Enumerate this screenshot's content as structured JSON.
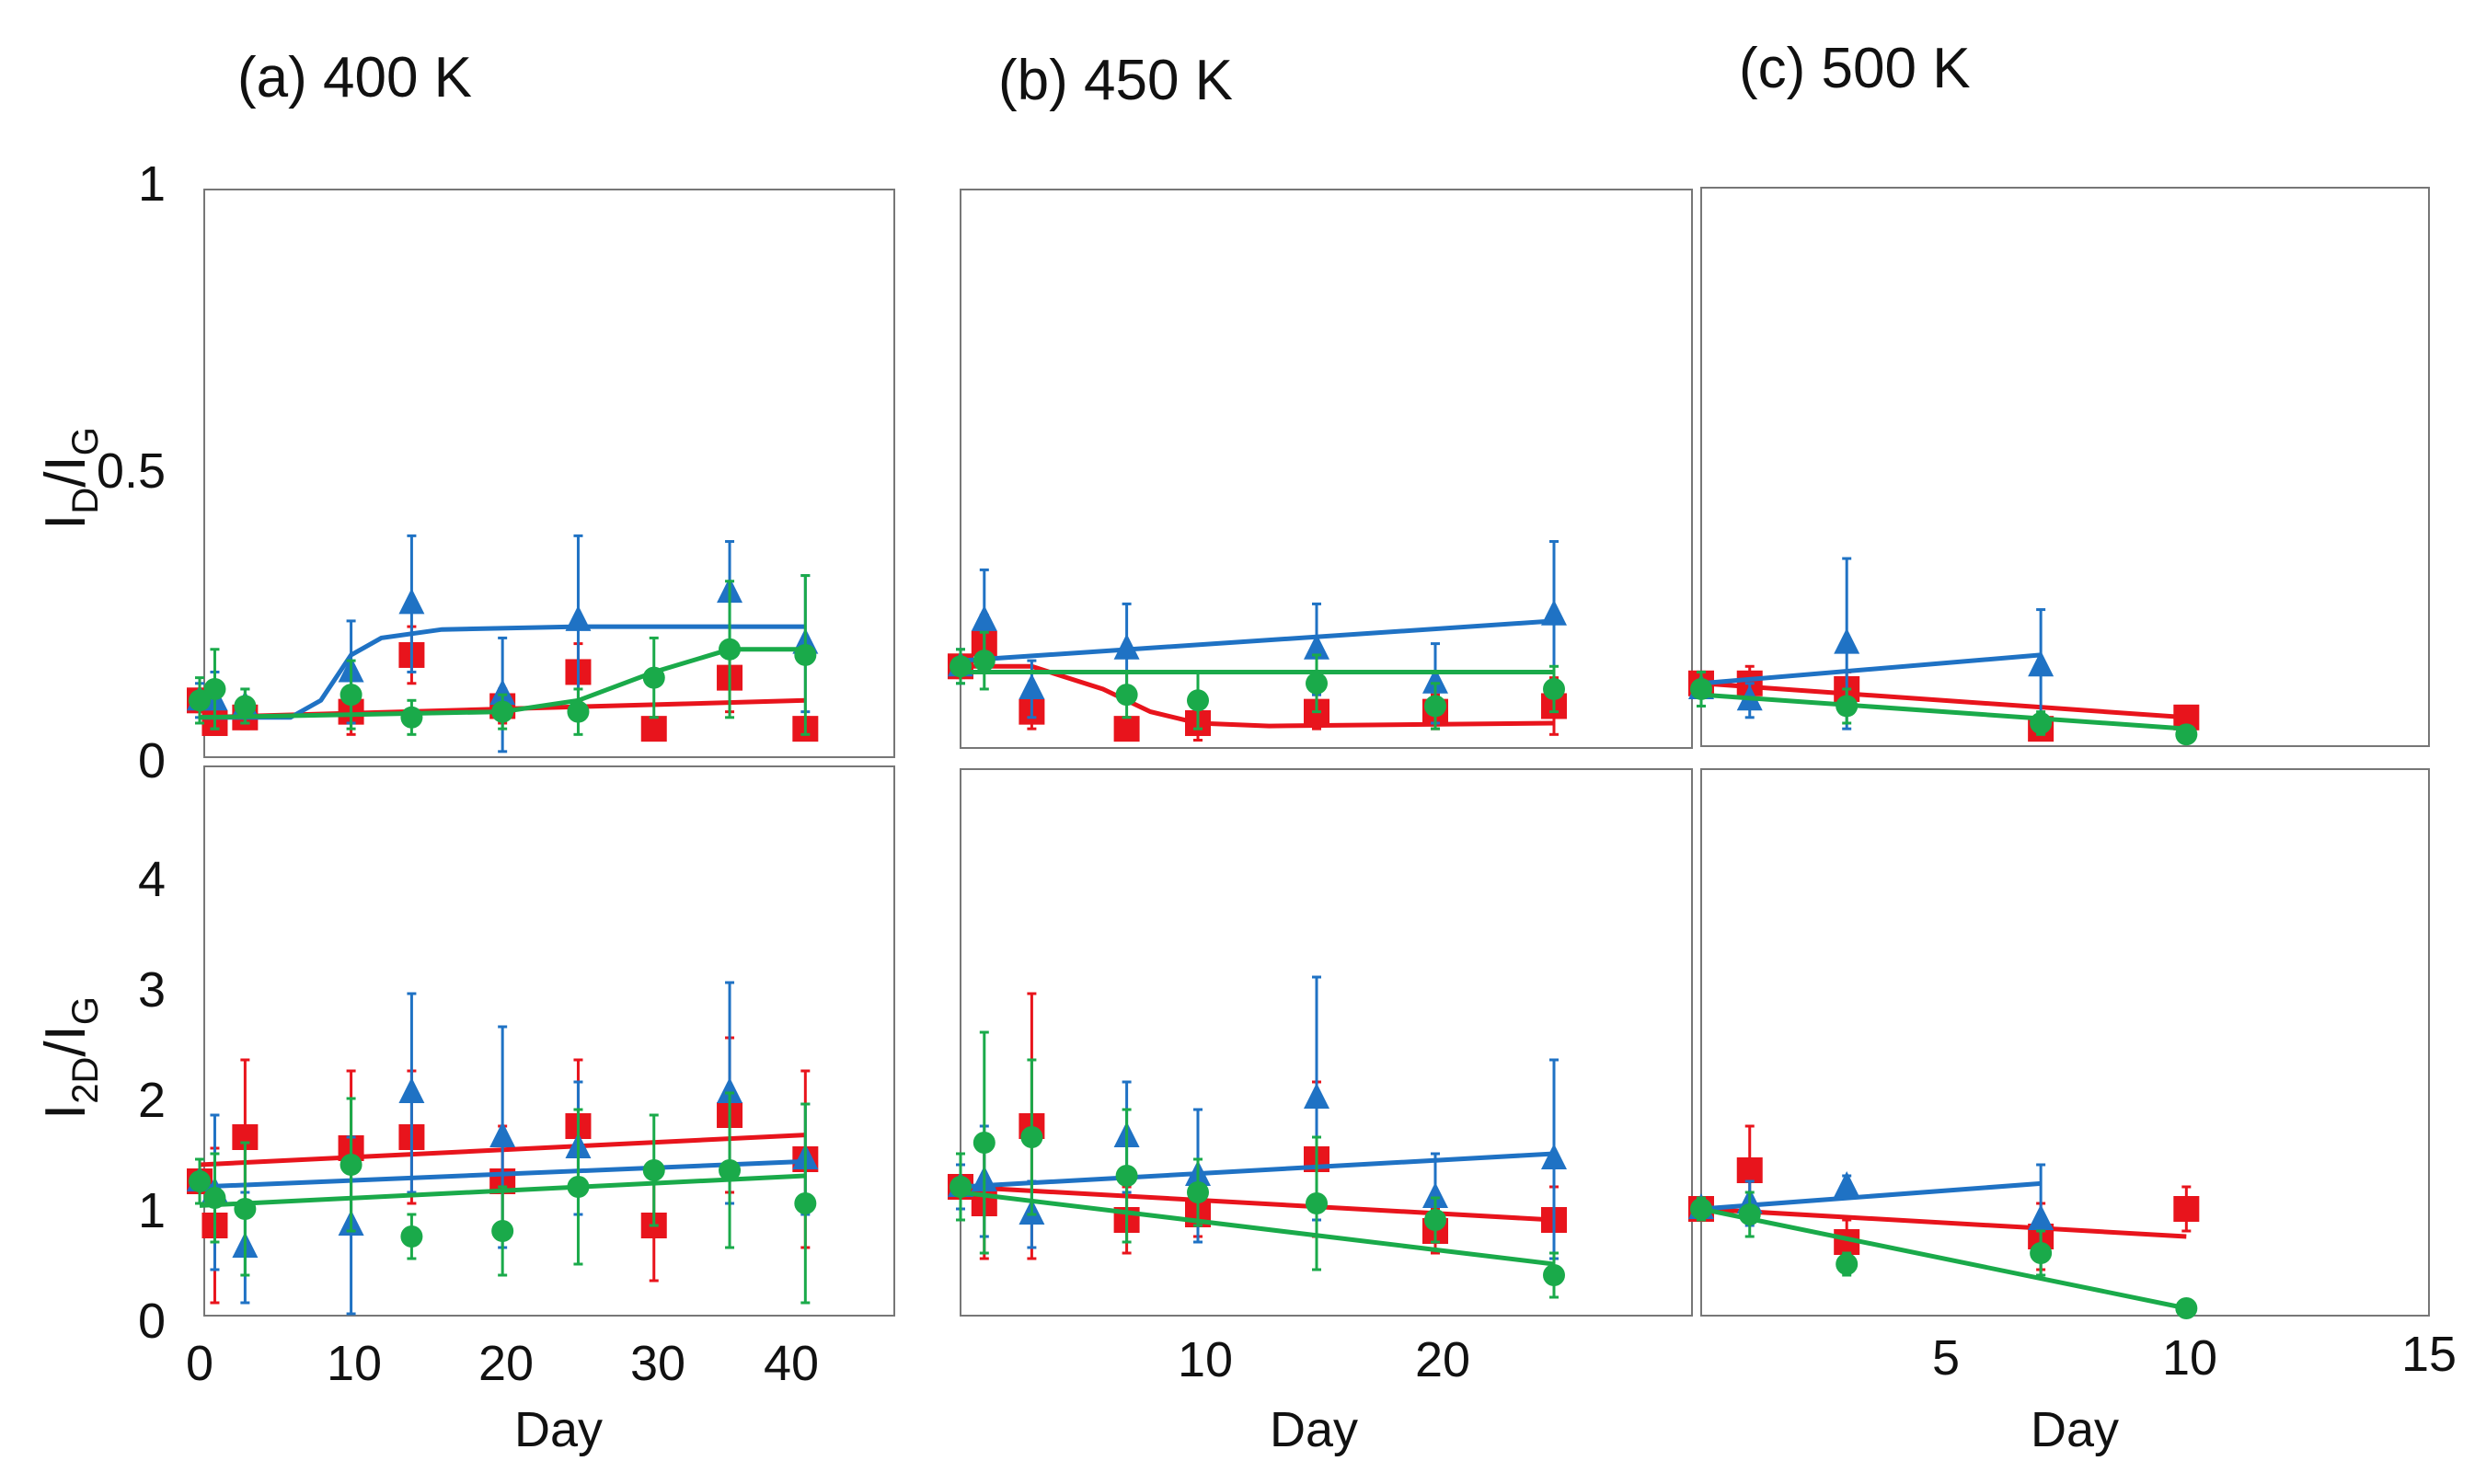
{
  "panel_titles": [
    "(a) 400 K",
    "(b) 450 K",
    "(c) 500 K"
  ],
  "y_labels": {
    "top": {
      "main": "I",
      "sub1": "D",
      "mid": "/I",
      "sub2": "G"
    },
    "bottom": {
      "main": "I",
      "sub1": "2D",
      "mid": "/I",
      "sub2": "G"
    }
  },
  "x_label": "Day",
  "top_y_ticks": [
    "1",
    "0.5",
    "0"
  ],
  "bottom_y_ticks": [
    "4",
    "3",
    "2",
    "1",
    "0"
  ],
  "x_ticks": {
    "a": [
      "0",
      "10",
      "20",
      "30",
      "40"
    ],
    "b": [
      "10",
      "20"
    ],
    "c": [
      "5",
      "10",
      "15"
    ]
  },
  "colors": {
    "red": "#e8141c",
    "blue": "#1f72c4",
    "green": "#1aaa4a",
    "frame": "#777777"
  },
  "chart_data": [
    {
      "type": "scatter",
      "panel": "a-top",
      "ylim": [
        0,
        1
      ],
      "xlim": [
        0,
        48
      ],
      "series": [
        {
          "color": "red",
          "marker": "square",
          "points": [
            [
              0,
              0.1,
              0.02
            ],
            [
              1,
              0.06,
              0.02
            ],
            [
              3,
              0.07,
              0.02
            ],
            [
              10,
              0.08,
              0.04
            ],
            [
              14,
              0.18,
              0.05
            ],
            [
              20,
              0.09,
              0.03
            ],
            [
              25,
              0.15,
              0.05
            ],
            [
              30,
              0.05,
              0.02
            ],
            [
              35,
              0.14,
              0.06
            ],
            [
              40,
              0.05,
              0.02
            ]
          ],
          "fit": [
            [
              0,
              0.07
            ],
            [
              40,
              0.1
            ]
          ]
        },
        {
          "color": "blue",
          "marker": "triangle",
          "points": [
            [
              0,
              0.1,
              0.03
            ],
            [
              1,
              0.1,
              0.05
            ],
            [
              3,
              0.09,
              0.03
            ],
            [
              10,
              0.15,
              0.09
            ],
            [
              14,
              0.27,
              0.12
            ],
            [
              20,
              0.11,
              0.1
            ],
            [
              25,
              0.24,
              0.15
            ],
            [
              35,
              0.29,
              0.09
            ],
            [
              40,
              0.2,
              0.12
            ]
          ],
          "fit": [
            [
              0,
              0.07
            ],
            [
              6,
              0.07
            ],
            [
              8,
              0.1
            ],
            [
              10,
              0.18
            ],
            [
              12,
              0.21
            ],
            [
              16,
              0.225
            ],
            [
              25,
              0.23
            ],
            [
              40,
              0.23
            ]
          ]
        },
        {
          "color": "green",
          "marker": "circle",
          "points": [
            [
              0,
              0.1,
              0.04
            ],
            [
              1,
              0.12,
              0.07
            ],
            [
              3,
              0.09,
              0.03
            ],
            [
              10,
              0.11,
              0.06
            ],
            [
              14,
              0.07,
              0.03
            ],
            [
              20,
              0.08,
              0.03
            ],
            [
              25,
              0.08,
              0.04
            ],
            [
              30,
              0.14,
              0.07
            ],
            [
              35,
              0.19,
              0.12
            ],
            [
              40,
              0.18,
              0.14
            ]
          ],
          "fit": [
            [
              0,
              0.07
            ],
            [
              20,
              0.08
            ],
            [
              25,
              0.1
            ],
            [
              30,
              0.15
            ],
            [
              35,
              0.19
            ],
            [
              40,
              0.19
            ]
          ]
        }
      ]
    },
    {
      "type": "scatter",
      "panel": "b-top",
      "ylim": [
        0,
        1
      ],
      "xlim": [
        0,
        30
      ],
      "series": [
        {
          "color": "red",
          "marker": "square",
          "points": [
            [
              0,
              0.16,
              0.02
            ],
            [
              1,
              0.2,
              0.05
            ],
            [
              3,
              0.08,
              0.03
            ],
            [
              7,
              0.05,
              0.02
            ],
            [
              10,
              0.06,
              0.03
            ],
            [
              15,
              0.08,
              0.03
            ],
            [
              20,
              0.08,
              0.03
            ],
            [
              25,
              0.09,
              0.05
            ]
          ],
          "fit": [
            [
              0,
              0.16
            ],
            [
              3,
              0.16
            ],
            [
              6,
              0.12
            ],
            [
              8,
              0.08
            ],
            [
              10,
              0.06
            ],
            [
              13,
              0.055
            ],
            [
              25,
              0.06
            ]
          ]
        },
        {
          "color": "blue",
          "marker": "triangle",
          "points": [
            [
              0,
              0.16,
              0.03
            ],
            [
              1,
              0.24,
              0.09
            ],
            [
              3,
              0.12,
              0.05
            ],
            [
              7,
              0.19,
              0.08
            ],
            [
              15,
              0.19,
              0.08
            ],
            [
              20,
              0.13,
              0.07
            ],
            [
              25,
              0.25,
              0.13
            ]
          ],
          "fit": [
            [
              0,
              0.17
            ],
            [
              25,
              0.24
            ]
          ]
        },
        {
          "color": "green",
          "marker": "circle",
          "points": [
            [
              0,
              0.16,
              0.03
            ],
            [
              1,
              0.17,
              0.05
            ],
            [
              7,
              0.11,
              0.04
            ],
            [
              10,
              0.1,
              0.05
            ],
            [
              15,
              0.13,
              0.05
            ],
            [
              20,
              0.09,
              0.04
            ],
            [
              25,
              0.12,
              0.04
            ]
          ],
          "fit": [
            [
              0,
              0.15
            ],
            [
              25,
              0.15
            ]
          ]
        }
      ]
    },
    {
      "type": "scatter",
      "panel": "c-top",
      "ylim": [
        0,
        1
      ],
      "xlim": [
        0,
        15
      ],
      "series": [
        {
          "color": "red",
          "marker": "square",
          "points": [
            [
              0,
              0.13,
              0.02
            ],
            [
              1,
              0.13,
              0.03
            ],
            [
              3,
              0.12,
              0.03
            ],
            [
              7,
              0.05,
              0.02
            ],
            [
              10,
              0.07,
              0.02
            ]
          ],
          "fit": [
            [
              0,
              0.13
            ],
            [
              10,
              0.07
            ]
          ]
        },
        {
          "color": "blue",
          "marker": "triangle",
          "points": [
            [
              0,
              0.12,
              0.03
            ],
            [
              1,
              0.1,
              0.03
            ],
            [
              3,
              0.2,
              0.15
            ],
            [
              7,
              0.16,
              0.1
            ]
          ],
          "fit": [
            [
              0,
              0.13
            ],
            [
              7,
              0.18
            ]
          ]
        },
        {
          "color": "green",
          "marker": "circle",
          "points": [
            [
              0,
              0.12,
              0.03
            ],
            [
              3,
              0.09,
              0.03
            ],
            [
              7,
              0.06,
              0.02
            ],
            [
              10,
              0.04,
              0.01
            ]
          ],
          "fit": [
            [
              0,
              0.11
            ],
            [
              10,
              0.05
            ]
          ]
        }
      ]
    },
    {
      "type": "scatter",
      "panel": "a-bottom",
      "ylim": [
        0,
        5
      ],
      "xlim": [
        0,
        48
      ],
      "series": [
        {
          "color": "red",
          "marker": "square",
          "points": [
            [
              0,
              1.3,
              0.2
            ],
            [
              1,
              0.9,
              0.7
            ],
            [
              3,
              1.7,
              0.7
            ],
            [
              10,
              1.6,
              0.7
            ],
            [
              14,
              1.7,
              0.6
            ],
            [
              20,
              1.3,
              0.5
            ],
            [
              25,
              1.8,
              0.6
            ],
            [
              30,
              0.9,
              0.5
            ],
            [
              35,
              1.9,
              0.7
            ],
            [
              40,
              1.5,
              0.8
            ]
          ],
          "fit": [
            [
              0,
              1.45
            ],
            [
              40,
              1.72
            ]
          ]
        },
        {
          "color": "blue",
          "marker": "triangle",
          "points": [
            [
              0,
              1.3,
              0.2
            ],
            [
              1,
              1.2,
              0.7
            ],
            [
              3,
              0.7,
              0.5
            ],
            [
              10,
              0.9,
              0.8
            ],
            [
              14,
              2.1,
              0.9
            ],
            [
              20,
              1.7,
              1.0
            ],
            [
              25,
              1.6,
              0.6
            ],
            [
              35,
              2.1,
              1.0
            ],
            [
              40,
              1.5,
              0.5
            ]
          ],
          "fit": [
            [
              0,
              1.25
            ],
            [
              40,
              1.48
            ]
          ]
        },
        {
          "color": "green",
          "marker": "circle",
          "points": [
            [
              0,
              1.3,
              0.2
            ],
            [
              1,
              1.15,
              0.4
            ],
            [
              3,
              1.05,
              0.6
            ],
            [
              10,
              1.45,
              0.6
            ],
            [
              14,
              0.8,
              0.2
            ],
            [
              20,
              0.85,
              0.4
            ],
            [
              25,
              1.25,
              0.7
            ],
            [
              30,
              1.4,
              0.5
            ],
            [
              35,
              1.4,
              0.7
            ],
            [
              40,
              1.1,
              0.9
            ]
          ],
          "fit": [
            [
              0,
              1.08
            ],
            [
              40,
              1.35
            ]
          ]
        }
      ]
    },
    {
      "type": "scatter",
      "panel": "b-bottom",
      "ylim": [
        0,
        5
      ],
      "xlim": [
        0,
        30
      ],
      "series": [
        {
          "color": "red",
          "marker": "square",
          "points": [
            [
              0,
              1.25,
              0.2
            ],
            [
              1,
              1.1,
              0.5
            ],
            [
              3,
              1.8,
              1.2
            ],
            [
              7,
              0.95,
              0.3
            ],
            [
              10,
              1.0,
              0.2
            ],
            [
              15,
              1.5,
              0.7
            ],
            [
              20,
              0.85,
              0.2
            ],
            [
              25,
              0.95,
              0.3
            ]
          ],
          "fit": [
            [
              0,
              1.25
            ],
            [
              25,
              0.95
            ]
          ]
        },
        {
          "color": "blue",
          "marker": "triangle",
          "points": [
            [
              0,
              1.25,
              0.2
            ],
            [
              1,
              1.3,
              0.5
            ],
            [
              3,
              1.0,
              0.3
            ],
            [
              7,
              1.7,
              0.5
            ],
            [
              10,
              1.35,
              0.6
            ],
            [
              15,
              2.05,
              1.1
            ],
            [
              20,
              1.15,
              0.4
            ],
            [
              25,
              1.5,
              0.9
            ]
          ],
          "fit": [
            [
              0,
              1.25
            ],
            [
              25,
              1.55
            ]
          ]
        },
        {
          "color": "green",
          "marker": "circle",
          "points": [
            [
              0,
              1.25,
              0.3
            ],
            [
              1,
              1.65,
              1.0
            ],
            [
              3,
              1.7,
              0.7
            ],
            [
              7,
              1.35,
              0.6
            ],
            [
              10,
              1.2,
              0.3
            ],
            [
              15,
              1.1,
              0.6
            ],
            [
              20,
              0.95,
              0.2
            ],
            [
              25,
              0.45,
              0.2
            ]
          ],
          "fit": [
            [
              0,
              1.2
            ],
            [
              25,
              0.55
            ]
          ]
        }
      ]
    },
    {
      "type": "scatter",
      "panel": "c-bottom",
      "ylim": [
        0,
        5
      ],
      "xlim": [
        0,
        15
      ],
      "series": [
        {
          "color": "red",
          "marker": "square",
          "points": [
            [
              0,
              1.05,
              0.1
            ],
            [
              1,
              1.4,
              0.4
            ],
            [
              3,
              0.75,
              0.2
            ],
            [
              7,
              0.8,
              0.3
            ],
            [
              10,
              1.05,
              0.2
            ]
          ],
          "fit": [
            [
              0,
              1.05
            ],
            [
              10,
              0.8
            ]
          ]
        },
        {
          "color": "blue",
          "marker": "triangle",
          "points": [
            [
              0,
              1.05,
              0.1
            ],
            [
              1,
              1.1,
              0.2
            ],
            [
              3,
              1.25,
              0.1
            ],
            [
              7,
              0.95,
              0.5
            ]
          ],
          "fit": [
            [
              0,
              1.05
            ],
            [
              7,
              1.28
            ]
          ]
        },
        {
          "color": "green",
          "marker": "circle",
          "points": [
            [
              0,
              1.05,
              0.1
            ],
            [
              1,
              1.0,
              0.2
            ],
            [
              3,
              0.55,
              0.1
            ],
            [
              7,
              0.65,
              0.2
            ],
            [
              10,
              0.15,
              0.05
            ]
          ],
          "fit": [
            [
              0,
              1.05
            ],
            [
              10,
              0.15
            ]
          ]
        }
      ]
    }
  ]
}
